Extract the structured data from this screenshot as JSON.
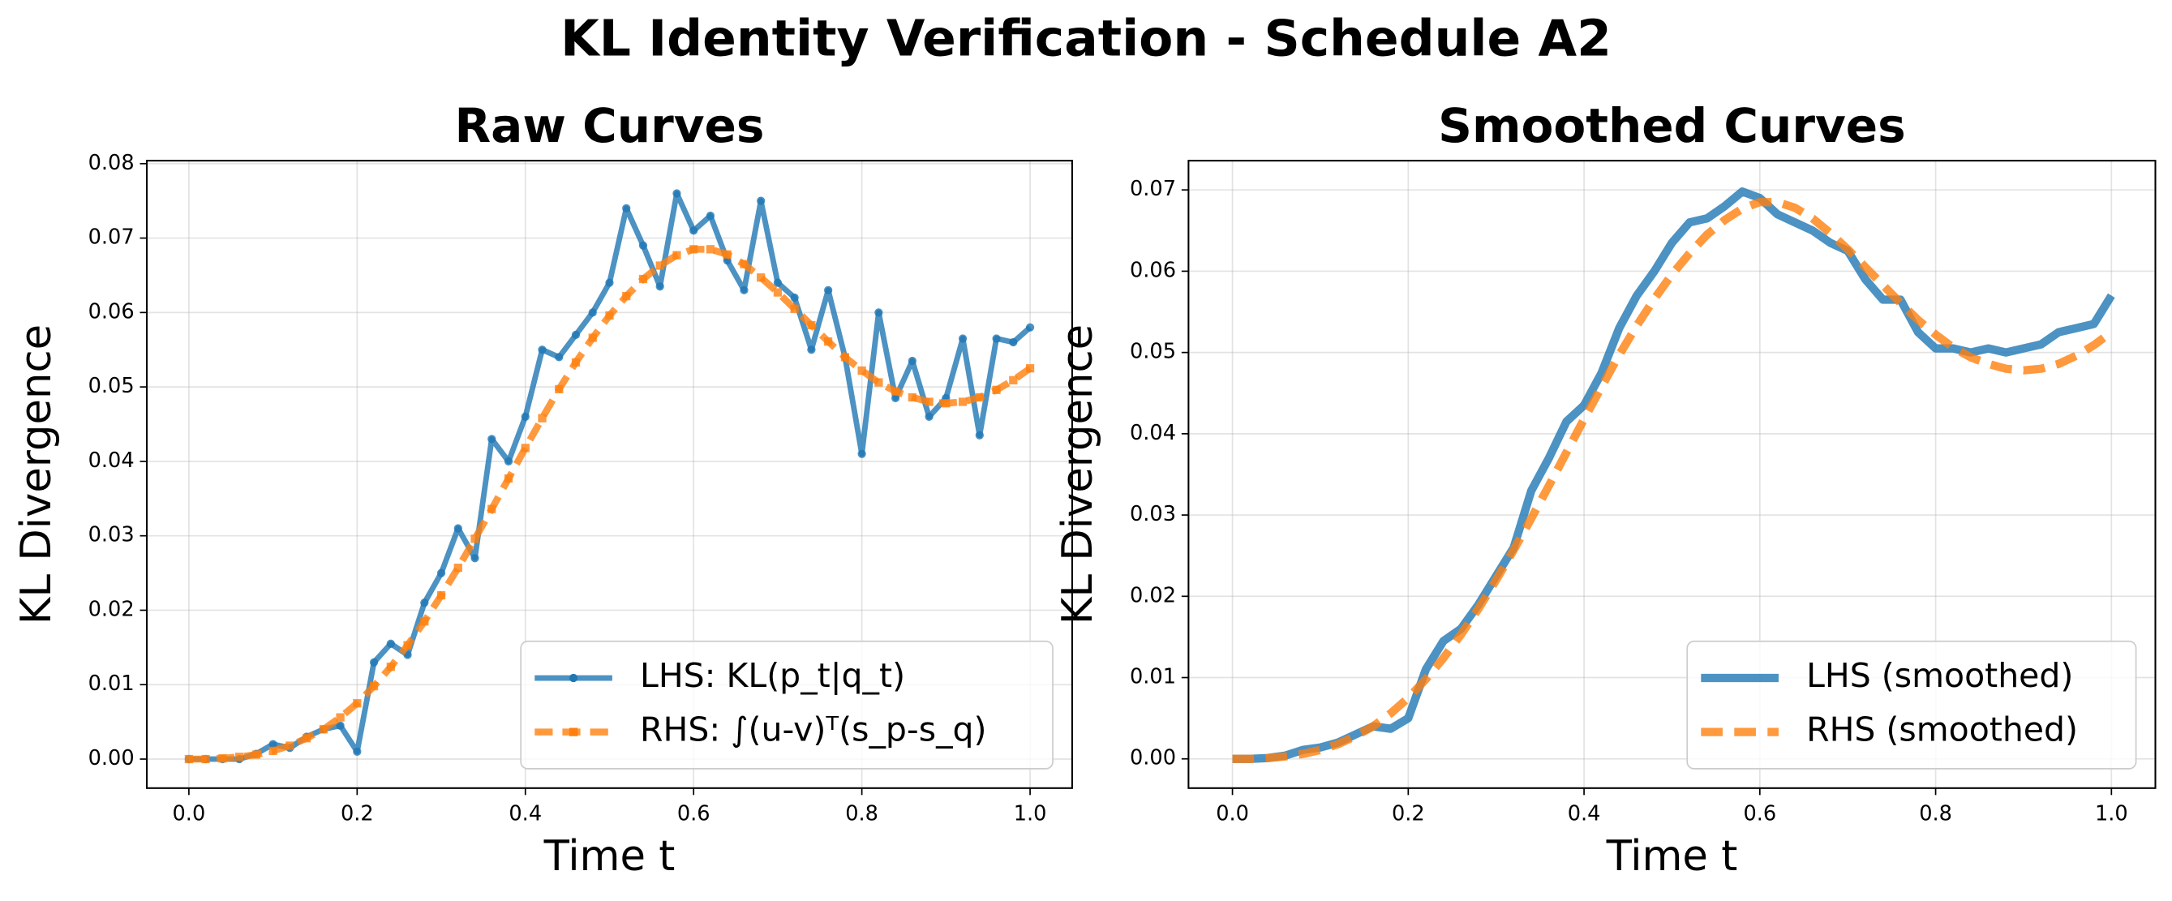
{
  "title": "KL Identity Verification - Schedule A2",
  "chart_data": [
    {
      "type": "line",
      "title": "Raw Curves",
      "xlabel": "Time t",
      "ylabel": "KL Divergence",
      "x": [
        0,
        0.02,
        0.04,
        0.06,
        0.08,
        0.1,
        0.12,
        0.14,
        0.16,
        0.18,
        0.2,
        0.22,
        0.24,
        0.26,
        0.28,
        0.3,
        0.32,
        0.34,
        0.36,
        0.38,
        0.4,
        0.42,
        0.44,
        0.46,
        0.48,
        0.5,
        0.52,
        0.54,
        0.56,
        0.58,
        0.6,
        0.62,
        0.64,
        0.66,
        0.68,
        0.7,
        0.72,
        0.74,
        0.76,
        0.78,
        0.8,
        0.82,
        0.84,
        0.86,
        0.88,
        0.9,
        0.92,
        0.94,
        0.96,
        0.98,
        1
      ],
      "series": [
        {
          "name": "LHS: KL(p_t|q_t)",
          "color": "#1f77b4",
          "marker": "circle",
          "linestyle": "solid",
          "width": 4,
          "values": [
            0,
            0,
            0,
            0,
            0.0007,
            0.002,
            0.0015,
            0.003,
            0.004,
            0.0045,
            0.001,
            0.013,
            0.0155,
            0.014,
            0.021,
            0.025,
            0.031,
            0.027,
            0.043,
            0.04,
            0.046,
            0.055,
            0.054,
            0.057,
            0.06,
            0.064,
            0.074,
            0.069,
            0.0635,
            0.076,
            0.071,
            0.073,
            0.067,
            0.063,
            0.075,
            0.064,
            0.062,
            0.055,
            0.063,
            0.054,
            0.041,
            0.06,
            0.0485,
            0.0535,
            0.046,
            0.0485,
            0.0565,
            0.0435,
            0.0565,
            0.056,
            0.058
          ]
        },
        {
          "name": "RHS: ∫(u-v)ᵀ(s_p-s_q)",
          "color": "#ff7f0e",
          "marker": "square",
          "linestyle": "dashed",
          "width": 5,
          "values": [
            0,
            0,
            0.0001,
            0.0003,
            0.0006,
            0.0011,
            0.0018,
            0.0028,
            0.004,
            0.0056,
            0.0075,
            0.0098,
            0.0124,
            0.0153,
            0.0185,
            0.022,
            0.0257,
            0.0296,
            0.0336,
            0.0377,
            0.0418,
            0.0458,
            0.0497,
            0.0533,
            0.0566,
            0.0596,
            0.0622,
            0.0645,
            0.0663,
            0.0677,
            0.0685,
            0.0685,
            0.0678,
            0.0665,
            0.0647,
            0.0627,
            0.0605,
            0.0583,
            0.0561,
            0.054,
            0.0522,
            0.0506,
            0.0494,
            0.0486,
            0.048,
            0.0478,
            0.048,
            0.0486,
            0.0496,
            0.0509,
            0.0525
          ]
        }
      ],
      "xlim": [
        -0.05,
        1.05
      ],
      "ylim": [
        -0.0039,
        0.0804
      ],
      "xticks": [
        {
          "value": 0,
          "label": "0.0"
        },
        0.2,
        0.4,
        0.6,
        0.8,
        {
          "value": 1,
          "label": "1.0"
        }
      ],
      "yticks": [
        {
          "value": 0,
          "label": "0.00"
        },
        0.01,
        0.02,
        0.03,
        0.04,
        0.05,
        0.06,
        0.07,
        0.08
      ],
      "grid": true,
      "legend": "lower right"
    },
    {
      "type": "line",
      "title": "Smoothed Curves",
      "xlabel": "Time t",
      "ylabel": "KL Divergence",
      "x": [
        0,
        0.02,
        0.04,
        0.06,
        0.08,
        0.1,
        0.12,
        0.14,
        0.16,
        0.18,
        0.2,
        0.22,
        0.24,
        0.26,
        0.28,
        0.3,
        0.32,
        0.34,
        0.36,
        0.38,
        0.4,
        0.42,
        0.44,
        0.46,
        0.48,
        0.5,
        0.52,
        0.54,
        0.56,
        0.58,
        0.6,
        0.62,
        0.64,
        0.66,
        0.68,
        0.7,
        0.72,
        0.74,
        0.76,
        0.78,
        0.8,
        0.82,
        0.84,
        0.86,
        0.88,
        0.9,
        0.92,
        0.94,
        0.96,
        0.98,
        1
      ],
      "series": [
        {
          "name": "LHS (smoothed)",
          "color": "#1f77b4",
          "linestyle": "solid",
          "width": 6,
          "values": [
            0,
            0,
            0.0001,
            0.0004,
            0.0011,
            0.0014,
            0.002,
            0.003,
            0.004,
            0.0037,
            0.005,
            0.011,
            0.0145,
            0.016,
            0.019,
            0.0225,
            0.026,
            0.033,
            0.037,
            0.0415,
            0.0435,
            0.0475,
            0.053,
            0.057,
            0.06,
            0.0635,
            0.066,
            0.0665,
            0.068,
            0.0698,
            0.069,
            0.067,
            0.066,
            0.065,
            0.0635,
            0.0625,
            0.059,
            0.0565,
            0.0565,
            0.0525,
            0.0505,
            0.0505,
            0.05,
            0.0505,
            0.05,
            0.0505,
            0.051,
            0.0525,
            0.053,
            0.0535,
            0.057
          ]
        },
        {
          "name": "RHS (smoothed)",
          "color": "#ff7f0e",
          "linestyle": "dashed",
          "width": 6,
          "values": [
            0,
            0,
            0.0001,
            0.0003,
            0.0006,
            0.0011,
            0.0018,
            0.0028,
            0.004,
            0.0056,
            0.0075,
            0.0098,
            0.0124,
            0.0153,
            0.0185,
            0.022,
            0.0257,
            0.0296,
            0.0336,
            0.0377,
            0.0418,
            0.0458,
            0.0497,
            0.0533,
            0.0566,
            0.0596,
            0.0622,
            0.0645,
            0.0663,
            0.0677,
            0.0685,
            0.0685,
            0.0678,
            0.0665,
            0.0647,
            0.0627,
            0.0605,
            0.0583,
            0.0561,
            0.054,
            0.0522,
            0.0506,
            0.0494,
            0.0486,
            0.048,
            0.0478,
            0.048,
            0.0486,
            0.0496,
            0.0509,
            0.0525
          ]
        }
      ],
      "xlim": [
        -0.05,
        1.05
      ],
      "ylim": [
        -0.0036,
        0.0736
      ],
      "xticks": [
        {
          "value": 0,
          "label": "0.0"
        },
        0.2,
        0.4,
        0.6,
        0.8,
        {
          "value": 1,
          "label": "1.0"
        }
      ],
      "yticks": [
        {
          "value": 0,
          "label": "0.00"
        },
        0.01,
        0.02,
        0.03,
        0.04,
        0.05,
        0.06,
        0.07
      ],
      "grid": true,
      "legend": "lower right"
    }
  ]
}
